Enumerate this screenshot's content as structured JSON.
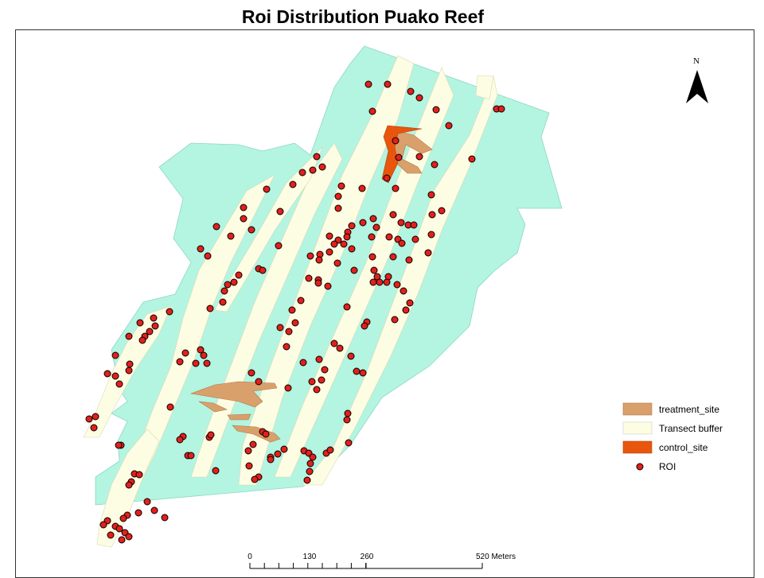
{
  "title": "Roi Distribution Puako Reef",
  "north_label": "N",
  "legend": {
    "items": [
      {
        "label": "treatment_site",
        "symbol": "rect",
        "color": "#d9a06b"
      },
      {
        "label": "Transect buffer",
        "symbol": "rect",
        "color": "#fdfde3"
      },
      {
        "label": "control_site",
        "symbol": "rect",
        "color": "#e8560e"
      },
      {
        "label": "ROI",
        "symbol": "dot",
        "color": "#e3201b"
      }
    ]
  },
  "scale_bar": {
    "labels": [
      "0",
      "130",
      "260",
      "520 Meters"
    ]
  },
  "colors": {
    "reef": "#b3f5e1",
    "buffer": "#fdfde3",
    "treatment": "#d9a06b",
    "control": "#e8560e",
    "roi": "#e3201b"
  }
}
